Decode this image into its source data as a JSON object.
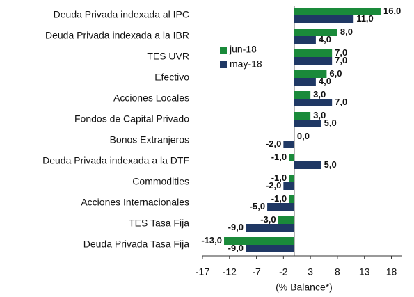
{
  "chart_data": {
    "type": "barh",
    "categories": [
      "Deuda Privada indexada al IPC",
      "Deuda Privada indexada a la IBR",
      "TES UVR",
      "Efectivo",
      "Acciones Locales",
      "Fondos de Capital Privado",
      "Bonos Extranjeros",
      "Deuda Privada indexada a la DTF",
      "Commodities",
      "Acciones Internacionales",
      "TES Tasa Fija",
      "Deuda Privada Tasa Fija"
    ],
    "series": [
      {
        "name": "jun-18",
        "color": "#1a8a3a",
        "values": [
          16,
          8,
          7,
          6,
          3,
          3,
          0,
          -1,
          -1,
          -1,
          -3,
          -13
        ],
        "value_labels": [
          "16,0",
          "8,0",
          "7,0",
          "6,0",
          "3,0",
          "3,0",
          "0,0",
          "-1,0",
          "-1,0",
          "-1,0",
          "-3,0",
          "-13,0"
        ]
      },
      {
        "name": "may-18",
        "color": "#1f3864",
        "values": [
          11,
          4,
          7,
          4,
          7,
          5,
          -2,
          5,
          -2,
          -5,
          -9,
          -9
        ],
        "value_labels": [
          "11,0",
          "4,0",
          "7,0",
          "4,0",
          "7,0",
          "5,0",
          "-2,0",
          "5,0",
          "-2,0",
          "-5,0",
          "-9,0",
          "-9,0"
        ]
      }
    ],
    "xlabel": "(% Balance*)",
    "xlim": [
      -17,
      20
    ],
    "xticks": [
      -17,
      -12,
      -7,
      -2,
      3,
      8,
      13,
      18
    ],
    "grid": false,
    "legend": "upper-center"
  }
}
